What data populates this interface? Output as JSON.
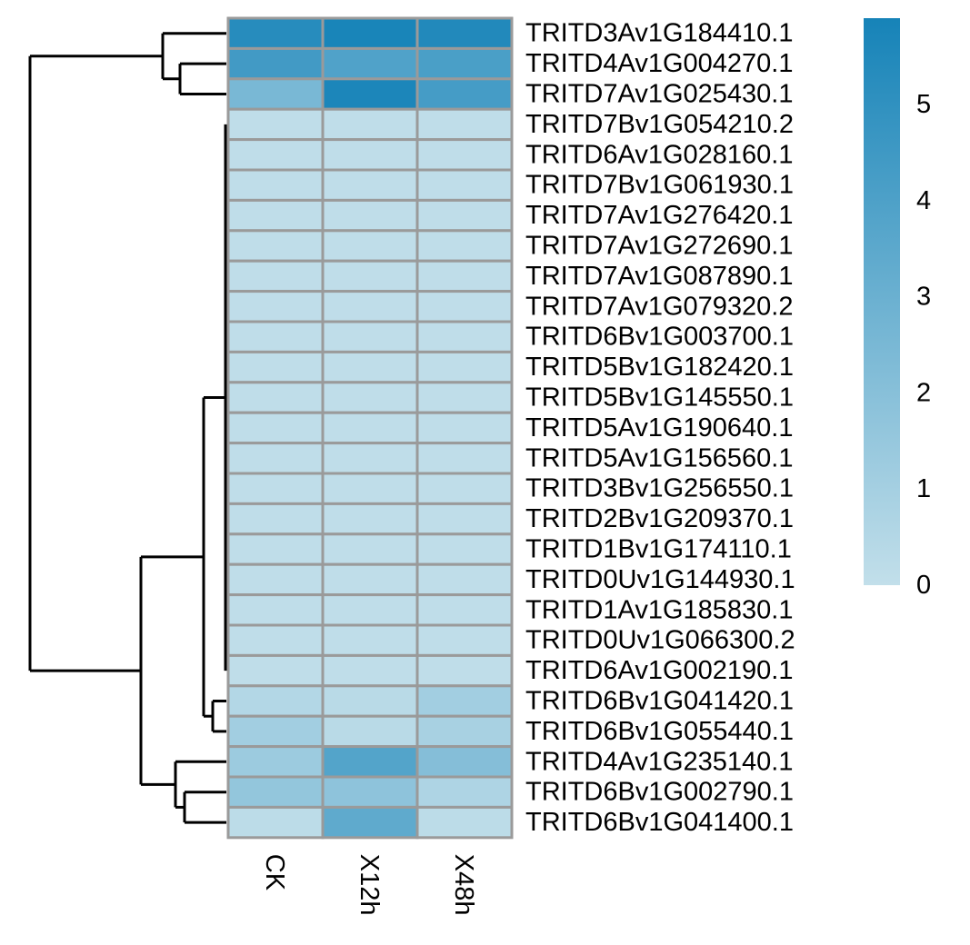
{
  "chart_data": {
    "type": "heatmap",
    "columns": [
      "CK",
      "X12h",
      "X48h"
    ],
    "rows": [
      "TRITD3Av1G184410.1",
      "TRITD4Av1G004270.1",
      "TRITD7Av1G025430.1",
      "TRITD7Bv1G054210.2",
      "TRITD6Av1G028160.1",
      "TRITD7Bv1G061930.1",
      "TRITD7Av1G276420.1",
      "TRITD7Av1G272690.1",
      "TRITD7Av1G087890.1",
      "TRITD7Av1G079320.2",
      "TRITD6Bv1G003700.1",
      "TRITD5Bv1G182420.1",
      "TRITD5Bv1G145550.1",
      "TRITD5Av1G190640.1",
      "TRITD5Av1G156560.1",
      "TRITD3Bv1G256550.1",
      "TRITD2Bv1G209370.1",
      "TRITD1Bv1G174110.1",
      "TRITD0Uv1G144930.1",
      "TRITD1Av1G185830.1",
      "TRITD0Uv1G066300.2",
      "TRITD6Av1G002190.1",
      "TRITD6Bv1G041420.1",
      "TRITD6Bv1G055440.1",
      "TRITD4Av1G235140.1",
      "TRITD6Bv1G002790.1",
      "TRITD6Bv1G041400.1"
    ],
    "values": [
      [
        5.3,
        5.8,
        5.5
      ],
      [
        4.4,
        3.9,
        4.1
      ],
      [
        2.5,
        5.7,
        4.3
      ],
      [
        0.1,
        0.1,
        0.1
      ],
      [
        0.1,
        0.1,
        0.1
      ],
      [
        0.1,
        0.1,
        0.1
      ],
      [
        0.1,
        0.1,
        0.1
      ],
      [
        0.1,
        0.1,
        0.1
      ],
      [
        0.1,
        0.1,
        0.1
      ],
      [
        0.1,
        0.1,
        0.1
      ],
      [
        0.1,
        0.1,
        0.1
      ],
      [
        0.1,
        0.1,
        0.1
      ],
      [
        0.1,
        0.1,
        0.1
      ],
      [
        0.1,
        0.1,
        0.1
      ],
      [
        0.1,
        0.1,
        0.1
      ],
      [
        0.1,
        0.1,
        0.1
      ],
      [
        0.1,
        0.1,
        0.1
      ],
      [
        0.1,
        0.1,
        0.1
      ],
      [
        0.1,
        0.1,
        0.1
      ],
      [
        0.1,
        0.1,
        0.1
      ],
      [
        0.1,
        0.1,
        0.1
      ],
      [
        0.1,
        0.1,
        0.1
      ],
      [
        0.5,
        0.3,
        1.1
      ],
      [
        1.1,
        0.3,
        0.9
      ],
      [
        1.3,
        3.8,
        2.1
      ],
      [
        1.6,
        1.8,
        0.7
      ],
      [
        0.2,
        3.4,
        0.2
      ]
    ],
    "color_scale": {
      "low": "#c2dfea",
      "high": "#1683b8",
      "min": 0,
      "max": 5.9
    },
    "legend": {
      "ticks": [
        0,
        1,
        2,
        3,
        4,
        5
      ],
      "placement": "right"
    },
    "row_dendrogram": true,
    "title": "",
    "xlabel": "",
    "ylabel": ""
  }
}
